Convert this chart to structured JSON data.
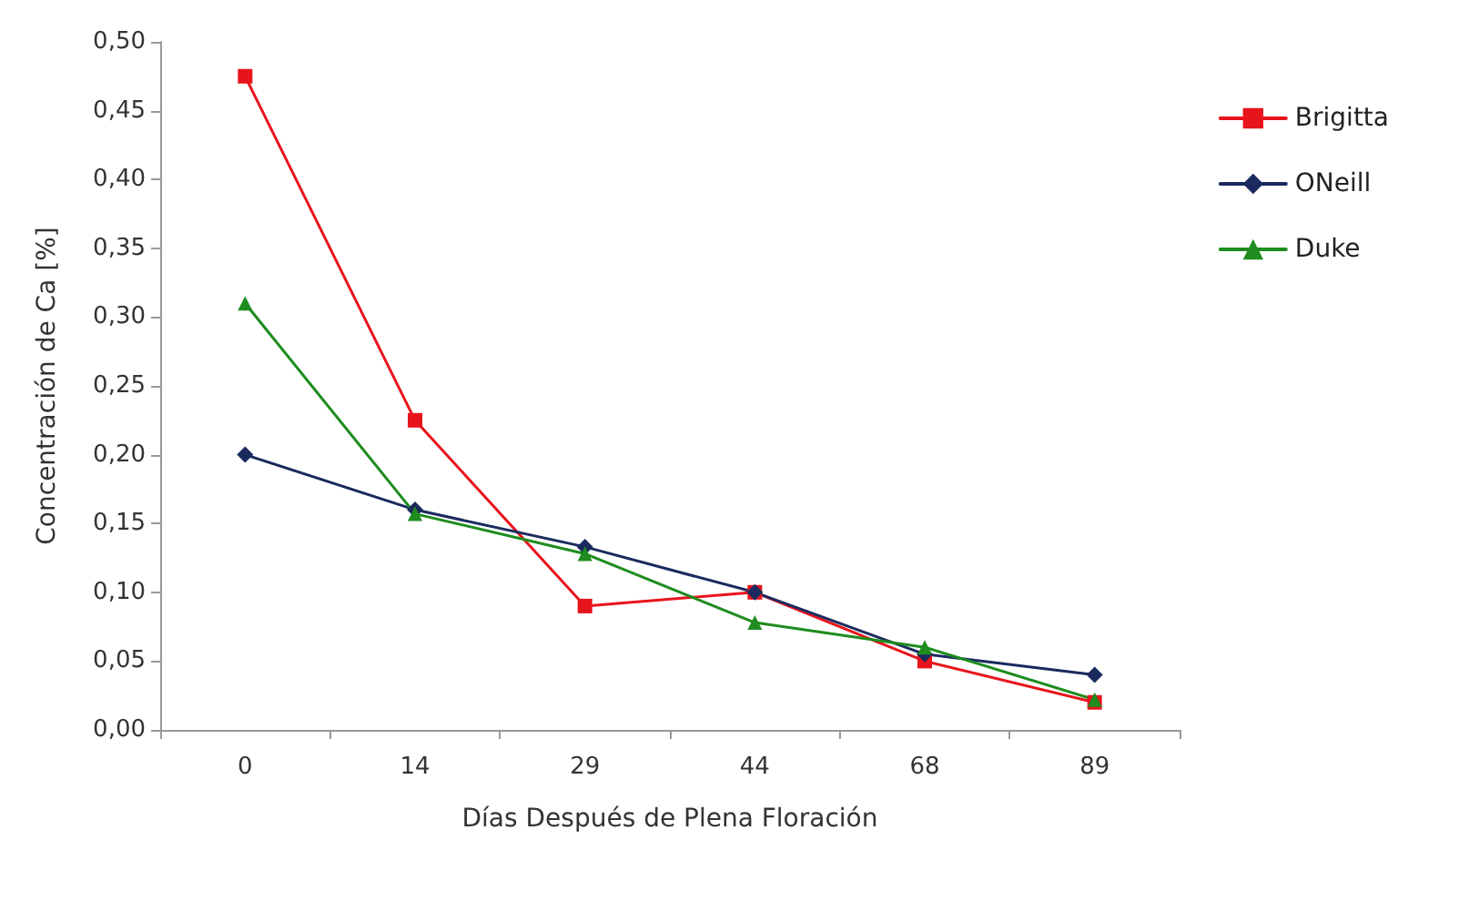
{
  "chart_data": {
    "type": "line",
    "xlabel": "Días Después de Plena Floración",
    "ylabel": "Concentración de Ca [%]",
    "categories": [
      "0",
      "14",
      "29",
      "44",
      "68",
      "89"
    ],
    "series": [
      {
        "name": "Brigitta",
        "color": "#e8141c",
        "marker": "square",
        "values": [
          0.475,
          0.225,
          0.09,
          0.1,
          0.05,
          0.02
        ]
      },
      {
        "name": "ONeill",
        "color": "#1a2a5e",
        "marker": "diamond",
        "values": [
          0.2,
          0.16,
          0.133,
          0.1,
          0.055,
          0.04
        ]
      },
      {
        "name": "Duke",
        "color": "#1e8c1e",
        "marker": "triangle",
        "values": [
          0.31,
          0.157,
          0.128,
          0.078,
          0.06,
          0.022
        ]
      }
    ],
    "ylim": [
      0,
      0.5
    ],
    "yticks": [
      {
        "value": 0,
        "label": "0,00"
      },
      {
        "value": 0.05,
        "label": "0,05"
      },
      {
        "value": 0.1,
        "label": "0,10"
      },
      {
        "value": 0.15,
        "label": "0,15"
      },
      {
        "value": 0.2,
        "label": "0,20"
      },
      {
        "value": 0.25,
        "label": "0,25"
      },
      {
        "value": 0.3,
        "label": "0,30"
      },
      {
        "value": 0.35,
        "label": "0,35"
      },
      {
        "value": 0.4,
        "label": "0,40"
      },
      {
        "value": 0.45,
        "label": "0,45"
      },
      {
        "value": 0.5,
        "label": "0,50"
      }
    ],
    "grid": false,
    "legend": "top right",
    "line_style": "solid"
  }
}
